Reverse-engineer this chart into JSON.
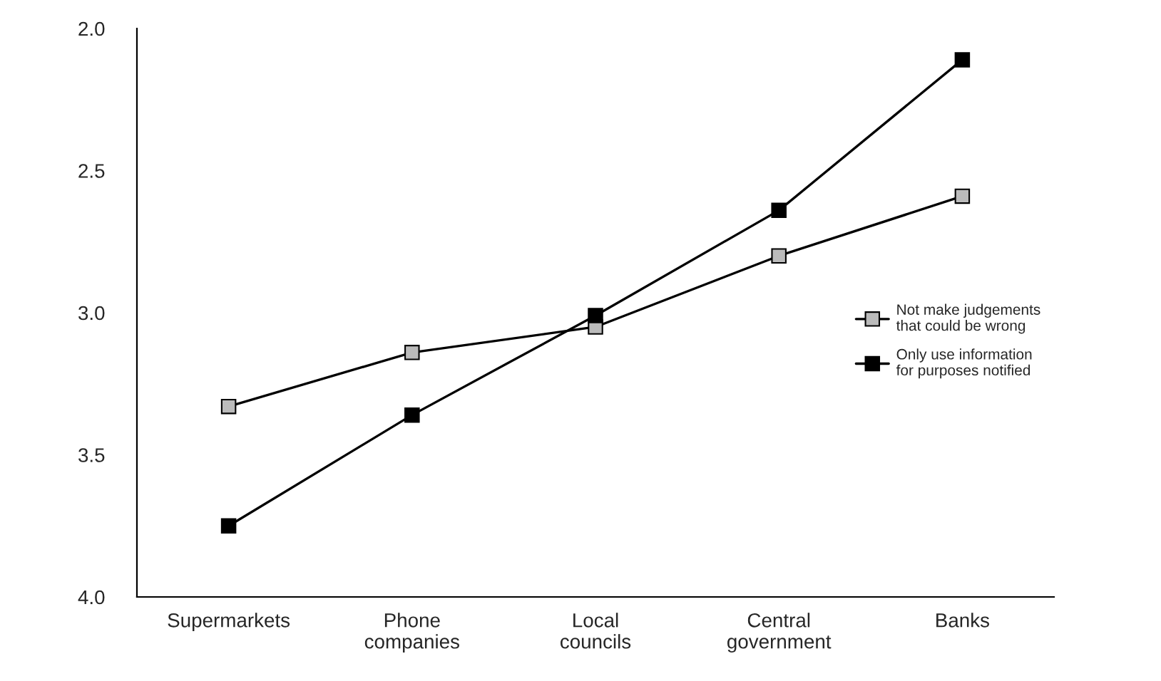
{
  "chart_data": {
    "type": "line",
    "categories": [
      "Supermarkets",
      "Phone\ncompanies",
      "Local\ncouncils",
      "Central\ngovernment",
      "Banks"
    ],
    "series": [
      {
        "name": "Not make judgements\nthat could be wrong",
        "color": "#bbbbbb",
        "values": [
          3.33,
          3.14,
          3.05,
          2.8,
          2.59
        ]
      },
      {
        "name": "Only use information\nfor purposes notified",
        "color": "#000000",
        "values": [
          3.75,
          3.36,
          3.01,
          2.64,
          2.11
        ]
      }
    ],
    "ylim": [
      4.0,
      2.0
    ],
    "yticks": [
      {
        "value": 4.0,
        "label": "4.0"
      },
      {
        "value": 3.5,
        "label": "3.5"
      },
      {
        "value": 3.0,
        "label": "3.0"
      },
      {
        "value": 2.5,
        "label": "2.5"
      },
      {
        "value": 2.0,
        "label": "2.0"
      }
    ],
    "grid": false,
    "legend": "right",
    "marker": "square",
    "line_style": "solid"
  }
}
